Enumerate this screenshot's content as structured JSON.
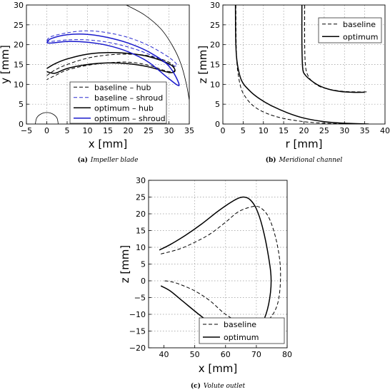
{
  "chart_data": [
    {
      "type": "line",
      "id": "a",
      "xlabel": "x [mm]",
      "ylabel": "y [mm]",
      "xlim": [
        -5,
        35
      ],
      "ylim": [
        0,
        30
      ],
      "xticks": [
        -5,
        0,
        5,
        10,
        15,
        20,
        25,
        30,
        35
      ],
      "yticks": [
        0,
        5,
        10,
        15,
        20,
        25,
        30
      ],
      "grid": true,
      "legend": "bottom-center",
      "caption": {
        "letter": "(a)",
        "text": "Impeller blade"
      },
      "series": [
        {
          "name": "baseline – hub",
          "style": "dashed",
          "color": "#000000",
          "x": [
            0,
            2,
            5,
            10,
            15,
            20,
            25,
            30,
            31.5,
            30,
            25,
            20,
            15,
            10,
            5,
            2,
            0
          ],
          "y": [
            12.2,
            13.6,
            15.0,
            16.6,
            17.4,
            17.6,
            17.2,
            15.6,
            13.8,
            13.2,
            14.8,
            15.6,
            15.4,
            14.8,
            13.6,
            12.2,
            11.2
          ]
        },
        {
          "name": "baseline – shroud",
          "style": "dashed",
          "color": "#2b2bd0",
          "x": [
            0,
            1,
            5,
            10,
            15,
            20,
            25,
            30,
            32,
            30,
            25,
            20,
            15,
            10,
            5,
            1,
            0
          ],
          "y": [
            21.0,
            22.0,
            23.0,
            23.5,
            23.0,
            21.8,
            19.8,
            16.8,
            14.8,
            15.0,
            17.6,
            19.4,
            20.6,
            21.2,
            21.2,
            20.8,
            21.0
          ]
        },
        {
          "name": "optimum – hub",
          "style": "solid",
          "color": "#000000",
          "x": [
            0,
            2,
            5,
            10,
            15,
            20,
            25,
            30,
            31.5,
            30,
            25,
            20,
            15,
            10,
            5,
            2,
            0
          ],
          "y": [
            14.0,
            15.2,
            16.4,
            17.6,
            18.0,
            17.8,
            17.0,
            15.2,
            13.5,
            13.0,
            14.4,
            15.2,
            15.4,
            15.0,
            14.0,
            12.8,
            13.2
          ]
        },
        {
          "name": "optimum – shroud",
          "style": "solid",
          "color": "#1a1acc",
          "x": [
            0,
            1,
            5,
            10,
            15,
            20,
            25,
            30,
            32.5,
            30,
            25,
            20,
            15,
            10,
            5,
            1,
            0
          ],
          "y": [
            20.5,
            21.5,
            22.5,
            22.6,
            21.8,
            20.4,
            18.2,
            14.6,
            9.8,
            11.4,
            15.6,
            18.2,
            19.8,
            20.6,
            20.8,
            20.4,
            20.5
          ]
        },
        {
          "name": "",
          "style": "thin",
          "color": "#000000",
          "x": [
            19.5,
            24,
            28,
            31,
            33,
            34.3,
            35
          ],
          "y": [
            30,
            27.5,
            24,
            19.5,
            15,
            10,
            6
          ]
        },
        {
          "name": "",
          "style": "thin-circle",
          "color": "#000000",
          "x": [
            -2.8,
            -2.5,
            -1.5,
            0,
            1.5,
            2.5,
            2.8
          ],
          "y": [
            0,
            1.5,
            2.5,
            2.9,
            2.5,
            1.5,
            0
          ]
        }
      ]
    },
    {
      "type": "line",
      "id": "b",
      "xlabel": "r [mm]",
      "ylabel": "z [mm]",
      "xlim": [
        0,
        40
      ],
      "ylim": [
        0,
        30
      ],
      "xticks": [
        0,
        5,
        10,
        15,
        20,
        25,
        30,
        35,
        40
      ],
      "yticks": [
        0,
        5,
        10,
        15,
        20,
        25,
        30
      ],
      "grid": true,
      "legend": "top-right",
      "caption": {
        "letter": "(b)",
        "text": "Meridional channel"
      },
      "series": [
        {
          "name": "baseline",
          "style": "dashed",
          "color": "#000000",
          "x": [
            3.2,
            3.3,
            3.6,
            4.5,
            6,
            8,
            11,
            15,
            20,
            25,
            30,
            35.5
          ],
          "y": [
            30,
            20,
            14,
            9,
            6.2,
            4.2,
            2.6,
            1.4,
            0.6,
            0.2,
            0.05,
            0
          ]
        },
        {
          "name": "optimum",
          "style": "solid",
          "color": "#000000",
          "x": [
            3.1,
            3.2,
            3.6,
            4.6,
            6.5,
            9,
            12,
            16,
            20,
            25,
            30,
            36
          ],
          "y": [
            30,
            20,
            15,
            11,
            8.5,
            6.4,
            4.6,
            2.8,
            1.5,
            0.6,
            0.2,
            0
          ]
        },
        {
          "name": "",
          "style": "dashed",
          "color": "#000000",
          "x": [
            20.2,
            20.2,
            20.4,
            21,
            22,
            24,
            27,
            30,
            33,
            36
          ],
          "y": [
            30,
            20,
            14.5,
            12.2,
            10.8,
            9.4,
            8.6,
            8.2,
            8.1,
            8.1
          ]
        },
        {
          "name": "",
          "style": "solid",
          "color": "#000000",
          "x": [
            19.5,
            19.5,
            19.7,
            20.3,
            21.5,
            23.5,
            26,
            29,
            32,
            35
          ],
          "y": [
            30,
            20,
            14,
            12.4,
            11.2,
            9.8,
            8.8,
            8.2,
            8.0,
            8.0
          ]
        }
      ]
    },
    {
      "type": "line",
      "id": "c",
      "xlabel": "x [mm]",
      "ylabel": "z [mm]",
      "xlim": [
        35,
        80
      ],
      "ylim": [
        -20,
        30
      ],
      "xticks": [
        40,
        50,
        60,
        70,
        80
      ],
      "yticks": [
        -20,
        -15,
        -10,
        -5,
        0,
        5,
        10,
        15,
        20,
        25,
        30
      ],
      "grid": true,
      "legend": "bottom-right",
      "caption": {
        "letter": "(c)",
        "text": "Volute outlet"
      },
      "series": [
        {
          "name": "baseline",
          "style": "dashed",
          "color": "#000000",
          "x": [
            39,
            45,
            50,
            55,
            60,
            64,
            68,
            71,
            74,
            76.5,
            77.8,
            77.5,
            76,
            73,
            70,
            66,
            60,
            55,
            50,
            45,
            42,
            40
          ],
          "y": [
            8,
            9.5,
            11.5,
            14,
            17.5,
            20.5,
            22,
            22,
            19,
            12,
            4,
            -4,
            -9,
            -12.5,
            -13.8,
            -13.2,
            -10,
            -6,
            -3,
            -1,
            -0.2,
            0
          ]
        },
        {
          "name": "optimum",
          "style": "solid",
          "color": "#000000",
          "x": [
            38.5,
            42,
            47,
            52,
            57,
            61,
            64,
            66,
            68,
            70,
            72,
            74,
            74.8,
            74,
            72,
            69,
            66,
            63,
            58,
            52,
            46,
            42,
            39
          ],
          "y": [
            9.2,
            10.8,
            13.6,
            16.8,
            20.4,
            23,
            24.6,
            25,
            24.2,
            21.5,
            16,
            7,
            0,
            -7,
            -12.5,
            -16,
            -17,
            -16.8,
            -14.5,
            -10.5,
            -6,
            -3,
            -1.5
          ]
        }
      ]
    }
  ]
}
